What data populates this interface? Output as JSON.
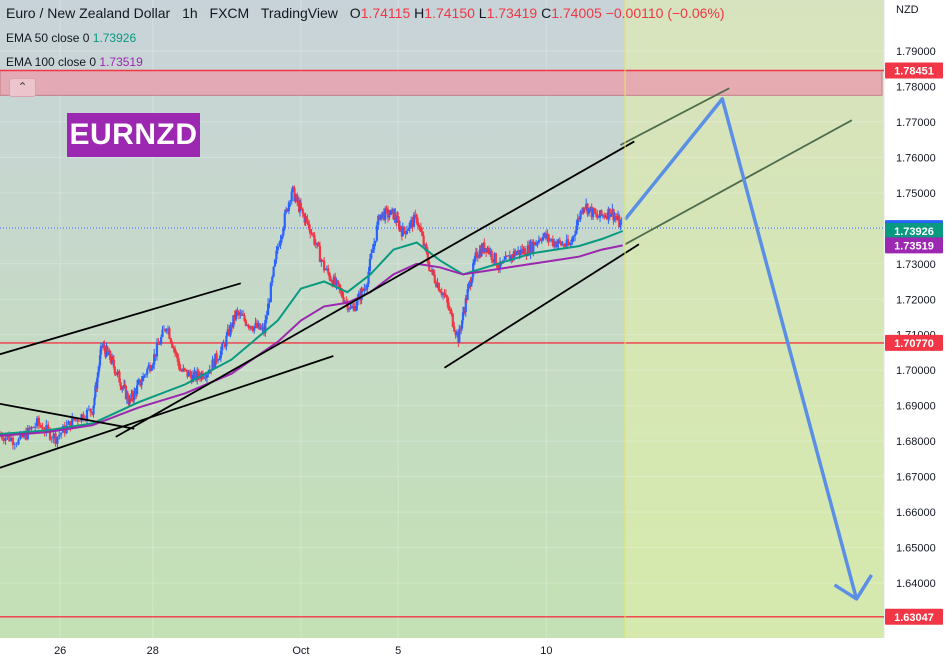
{
  "legend": {
    "pair": "Euro / New Zealand Dollar",
    "interval": "1h",
    "broker": "FXCM",
    "platform": "TradingView",
    "ohlc": [
      {
        "k": "O",
        "v": "1.74115"
      },
      {
        "k": "H",
        "v": "1.74150"
      },
      {
        "k": "L",
        "v": "1.73419"
      },
      {
        "k": "C",
        "v": "1.74005"
      }
    ],
    "change": "−0.00110 (−0.06%)",
    "ema50_label": "EMA 50 close 0",
    "ema50_value": "1.73926",
    "ema100_label": "EMA 100 close 0",
    "ema100_value": "1.73519"
  },
  "symbol_badge": "EURNZD",
  "collapse_icon": "chevron-up-icon",
  "chart_data": {
    "type": "line",
    "title": "Euro / New Zealand Dollar · 1h · FXCM",
    "currency": "NZD",
    "ylim": [
      1.625,
      1.805
    ],
    "y_ticks": [
      "1.79000",
      "1.78000",
      "1.77000",
      "1.76000",
      "1.75000",
      "1.74000",
      "1.73000",
      "1.72000",
      "1.71000",
      "1.70000",
      "1.69000",
      "1.68000",
      "1.67000",
      "1.66000",
      "1.65000",
      "1.64000"
    ],
    "y_tick_values": [
      1.79,
      1.78,
      1.77,
      1.76,
      1.75,
      1.74,
      1.73,
      1.72,
      1.71,
      1.7,
      1.69,
      1.68,
      1.67,
      1.66,
      1.65,
      1.64
    ],
    "x_range": [
      0,
      19.2
    ],
    "x_ticks": [
      {
        "label": "26",
        "x": 1.3
      },
      {
        "label": "28",
        "x": 3.3
      },
      {
        "label": "Oct",
        "x": 6.5
      },
      {
        "label": "5",
        "x": 8.6
      },
      {
        "label": "10",
        "x": 11.8
      }
    ],
    "current_bar_x": 13.5,
    "last_bar_x": 13.45,
    "price_labels": [
      {
        "name": "resistance",
        "value": "1.78451",
        "y": 1.78451,
        "color": "#f23645"
      },
      {
        "name": "last-price",
        "value": "1.74005",
        "y": 1.74005,
        "color": "#2962ff"
      },
      {
        "name": "ema50",
        "value": "1.73926",
        "y": 1.73926,
        "color": "#089981"
      },
      {
        "name": "ema100",
        "value": "1.73519",
        "y": 1.73519,
        "color": "#9c27b0"
      },
      {
        "name": "support",
        "value": "1.70770",
        "y": 1.7077,
        "color": "#f23645"
      },
      {
        "name": "target",
        "value": "1.63047",
        "y": 1.63047,
        "color": "#f23645"
      }
    ],
    "resistance_zone": [
      1.7775,
      1.7845
    ],
    "horizontal_levels": [
      {
        "name": "support-line",
        "y": 1.7077,
        "color": "#f23645"
      },
      {
        "name": "target-line",
        "y": 1.63047,
        "color": "#f23645"
      }
    ],
    "last_price_line": 1.74005,
    "price_series": {
      "x": [
        0.0,
        0.4,
        0.8,
        1.2,
        1.6,
        2.0,
        2.2,
        2.4,
        2.6,
        2.8,
        3.0,
        3.3,
        3.6,
        3.9,
        4.2,
        4.5,
        4.8,
        5.1,
        5.4,
        5.7,
        6.0,
        6.3,
        6.5,
        6.7,
        7.0,
        7.3,
        7.6,
        7.9,
        8.2,
        8.5,
        8.7,
        9.0,
        9.3,
        9.6,
        9.9,
        10.1,
        10.3,
        10.5,
        10.8,
        11.1,
        11.4,
        11.7,
        12.0,
        12.3,
        12.6,
        12.9,
        13.2,
        13.45
      ],
      "y": [
        1.682,
        1.68,
        1.685,
        1.681,
        1.686,
        1.689,
        1.707,
        1.703,
        1.697,
        1.691,
        1.696,
        1.703,
        1.713,
        1.7,
        1.698,
        1.7,
        1.706,
        1.716,
        1.713,
        1.711,
        1.735,
        1.751,
        1.745,
        1.74,
        1.729,
        1.723,
        1.717,
        1.724,
        1.744,
        1.744,
        1.739,
        1.743,
        1.728,
        1.721,
        1.709,
        1.722,
        1.733,
        1.735,
        1.729,
        1.733,
        1.734,
        1.738,
        1.736,
        1.735,
        1.747,
        1.743,
        1.745,
        1.74
      ]
    },
    "series": [
      {
        "name": "EMA 50 close 0",
        "color": "#089981",
        "x": [
          0,
          1,
          2,
          3,
          4,
          5,
          6,
          6.5,
          7,
          7.5,
          8,
          8.5,
          9,
          9.5,
          10,
          10.5,
          11,
          11.5,
          12,
          12.5,
          13,
          13.45
        ],
        "y": [
          1.682,
          1.683,
          1.685,
          1.691,
          1.696,
          1.703,
          1.714,
          1.723,
          1.725,
          1.722,
          1.727,
          1.734,
          1.736,
          1.731,
          1.727,
          1.729,
          1.731,
          1.733,
          1.734,
          1.735,
          1.737,
          1.73926
        ]
      },
      {
        "name": "EMA 100 close 0",
        "color": "#9c27b0",
        "x": [
          0,
          1,
          2,
          3,
          4,
          5,
          6,
          6.5,
          7,
          7.5,
          8,
          8.5,
          9,
          9.5,
          10,
          10.5,
          11,
          11.5,
          12,
          12.5,
          13,
          13.45
        ],
        "y": [
          1.6815,
          1.6825,
          1.6845,
          1.6895,
          1.6935,
          1.699,
          1.708,
          1.714,
          1.718,
          1.719,
          1.722,
          1.727,
          1.73,
          1.729,
          1.727,
          1.728,
          1.729,
          1.73,
          1.731,
          1.732,
          1.734,
          1.73519
        ]
      }
    ],
    "trendlines": [
      {
        "name": "upper-channel-left",
        "x": [
          0,
          5.2
        ],
        "y": [
          1.7045,
          1.7245
        ],
        "color": "#000000"
      },
      {
        "name": "lower-channel-left",
        "x": [
          0,
          7.2
        ],
        "y": [
          1.6725,
          1.704
        ],
        "color": "#000000"
      },
      {
        "name": "wedge-top",
        "x": [
          0,
          2.9
        ],
        "y": [
          1.6905,
          1.6835
        ],
        "color": "#000000"
      },
      {
        "name": "rising-trend-main",
        "x": [
          2.5,
          13.7
        ],
        "y": [
          1.6812,
          1.7645
        ],
        "color": "#000000"
      },
      {
        "name": "rising-trend-lower",
        "x": [
          9.6,
          13.8
        ],
        "y": [
          1.7007,
          1.7355
        ],
        "color": "#000000"
      },
      {
        "name": "projected-upper",
        "x": [
          13.4,
          15.75
        ],
        "y": [
          1.7635,
          1.7795
        ],
        "color": "#4e6b4a"
      },
      {
        "name": "projected-lower",
        "x": [
          13.5,
          18.4
        ],
        "y": [
          1.7355,
          1.7705
        ],
        "color": "#4e6b4a"
      }
    ],
    "projection": {
      "name": "forecast-path",
      "color": "#5b8fe6",
      "x": [
        13.5,
        15.6,
        18.5
      ],
      "y": [
        1.7425,
        1.7765,
        1.6355
      ]
    }
  }
}
